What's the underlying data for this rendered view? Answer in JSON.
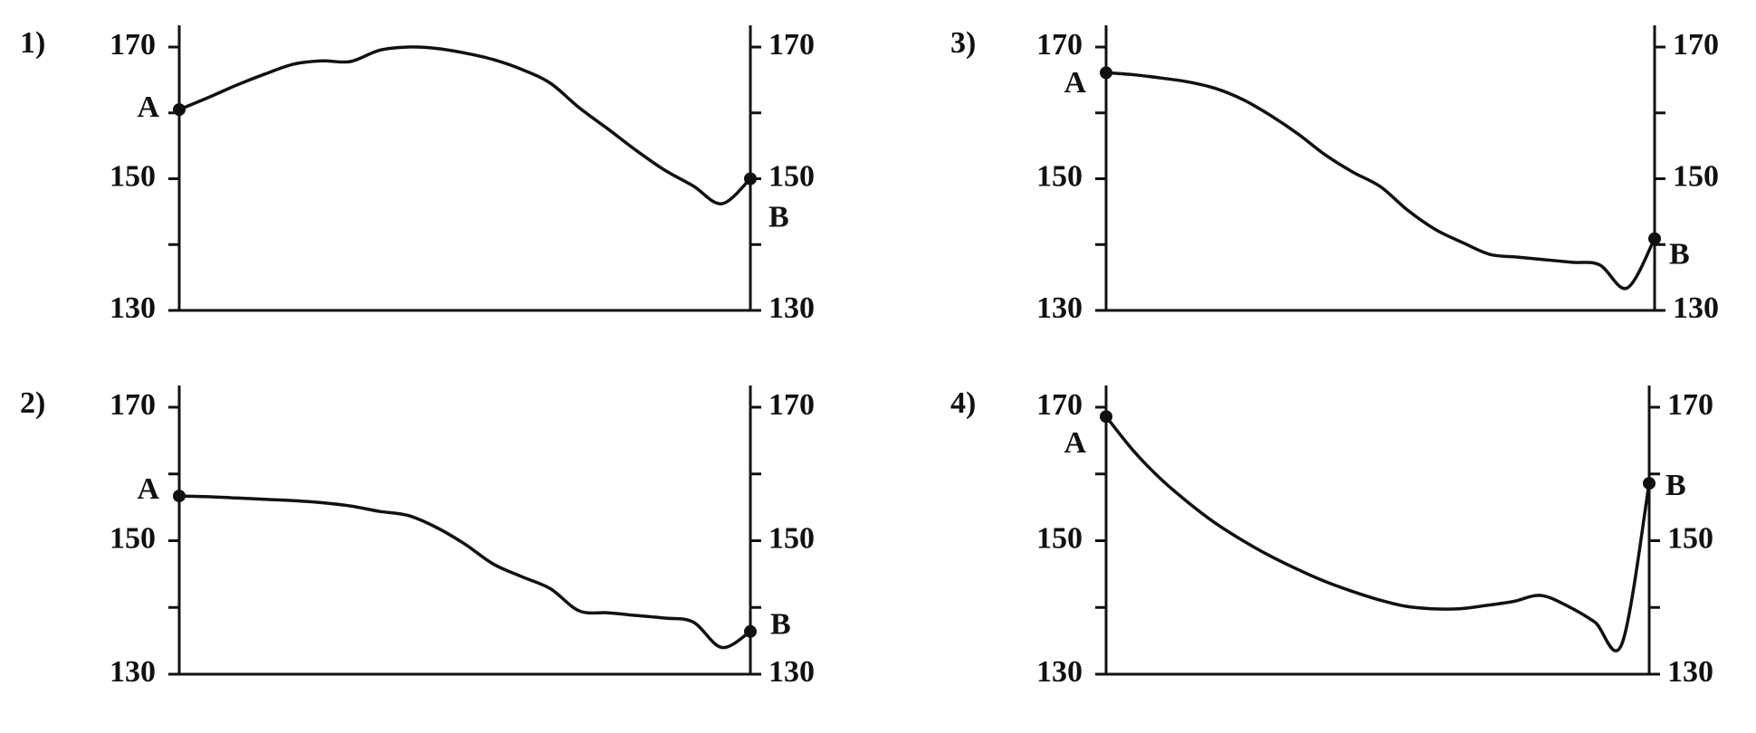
{
  "chart_data": [
    {
      "type": "line",
      "title": "1)",
      "start_label": "A",
      "end_label": "B",
      "color": "#111111",
      "values": [
        160.5,
        162.3,
        164.2,
        165.9,
        167.4,
        167.9,
        167.8,
        169.5,
        170,
        169.8,
        169.1,
        168.1,
        166.6,
        164.5,
        160.8,
        157.6,
        154.3,
        151.3,
        148.9,
        146.2,
        150
      ],
      "ylim": [
        130,
        170
      ],
      "yticks": [
        130,
        150,
        170
      ],
      "yminor_ticks": [
        140,
        160
      ]
    },
    {
      "type": "line",
      "title": "2)",
      "start_label": "A",
      "end_label": "B",
      "color": "#111111",
      "values": [
        156.7,
        156.6,
        156.4,
        156.2,
        156.0,
        155.7,
        155.2,
        154.4,
        153.8,
        152.0,
        149.5,
        146.5,
        144.6,
        142.8,
        139.5,
        139.2,
        138.8,
        138.4,
        137.8,
        134.0,
        136.4
      ],
      "ylim": [
        130,
        170
      ],
      "yticks": [
        130,
        150,
        170
      ],
      "yminor_ticks": [
        140,
        160
      ]
    },
    {
      "type": "line",
      "title": "3)",
      "start_label": "A",
      "end_label": "B",
      "color": "#111111",
      "values": [
        166.1,
        165.8,
        165.3,
        164.7,
        163.7,
        162.0,
        159.6,
        156.8,
        153.6,
        151.0,
        148.8,
        145.2,
        142.3,
        140.3,
        138.5,
        138.1,
        137.7,
        137.3,
        136.9,
        133.4,
        140.9
      ],
      "ylim": [
        130,
        170
      ],
      "yticks": [
        130,
        150,
        170
      ],
      "yminor_ticks": [
        140,
        160
      ]
    },
    {
      "type": "line",
      "title": "4)",
      "start_label": "A",
      "end_label": "B",
      "color": "#111111",
      "values": [
        168.6,
        163.5,
        159.3,
        155.8,
        152.7,
        150.1,
        147.8,
        145.8,
        144.0,
        142.5,
        141.2,
        140.2,
        139.8,
        139.8,
        140.3,
        140.9,
        141.8,
        140.2,
        137.8,
        134.6,
        158.6
      ],
      "ylim": [
        130,
        170
      ],
      "yticks": [
        130,
        150,
        170
      ],
      "yminor_ticks": [
        140,
        160
      ]
    }
  ]
}
